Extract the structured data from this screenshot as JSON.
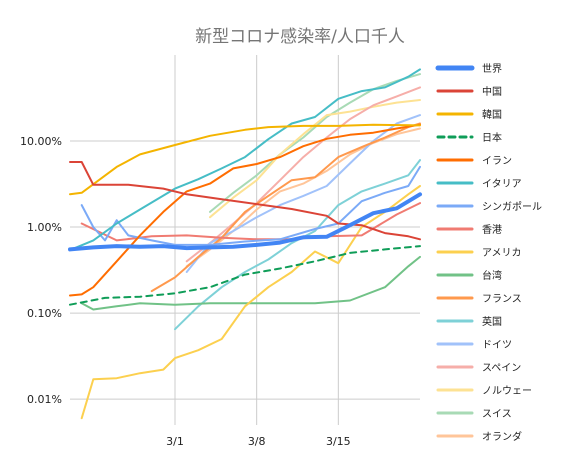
{
  "chart_data": {
    "type": "line",
    "title": "新型コロナ感染率/人口千人",
    "xlabel": "",
    "ylabel": "",
    "y_scale": "log",
    "ylim": [
      0.005,
      100
    ],
    "y_ticks": [
      {
        "value": 0.01,
        "label": "0.01%"
      },
      {
        "value": 0.1,
        "label": "0.10%"
      },
      {
        "value": 1,
        "label": "1.00%"
      },
      {
        "value": 10,
        "label": "10.00%"
      }
    ],
    "xlim": [
      "2020-02-21",
      "2020-03-22"
    ],
    "x_ticks": [
      {
        "value": "2020-03-01",
        "label": "3/1"
      },
      {
        "value": "2020-03-08",
        "label": "3/8"
      },
      {
        "value": "2020-03-15",
        "label": "3/15"
      }
    ],
    "grid": true,
    "legend_position": "right",
    "series": [
      {
        "name": "世界",
        "color": "#4285f4",
        "width": 4,
        "dash": "",
        "x": [
          "2020-02-21",
          "2020-02-23",
          "2020-02-25",
          "2020-02-27",
          "2020-02-29",
          "2020-03-02",
          "2020-03-04",
          "2020-03-06",
          "2020-03-08",
          "2020-03-10",
          "2020-03-12",
          "2020-03-14",
          "2020-03-16",
          "2020-03-18",
          "2020-03-20",
          "2020-03-22"
        ],
        "y": [
          0.55,
          0.58,
          0.6,
          0.59,
          0.6,
          0.57,
          0.58,
          0.59,
          0.62,
          0.66,
          0.76,
          0.77,
          1.05,
          1.45,
          1.65,
          2.4
        ]
      },
      {
        "name": "中国",
        "color": "#db4437",
        "width": 2,
        "dash": "",
        "x": [
          "2020-02-21",
          "2020-02-22",
          "2020-02-23",
          "2020-02-26",
          "2020-02-29",
          "2020-03-02",
          "2020-03-05",
          "2020-03-08",
          "2020-03-11",
          "2020-03-14",
          "2020-03-15",
          "2020-03-17",
          "2020-03-19",
          "2020-03-21",
          "2020-03-22"
        ],
        "y": [
          5.7,
          5.7,
          3.1,
          3.1,
          2.8,
          2.4,
          2.1,
          1.85,
          1.62,
          1.35,
          1.1,
          1.05,
          0.85,
          0.78,
          0.72
        ]
      },
      {
        "name": "韓国",
        "color": "#f4b400",
        "width": 2,
        "dash": "",
        "x": [
          "2020-02-21",
          "2020-02-22",
          "2020-02-25",
          "2020-02-27",
          "2020-03-01",
          "2020-03-04",
          "2020-03-07",
          "2020-03-09",
          "2020-03-12",
          "2020-03-15",
          "2020-03-18",
          "2020-03-22"
        ],
        "y": [
          2.4,
          2.5,
          5.0,
          7.0,
          9.0,
          11.5,
          13.5,
          14.5,
          15.0,
          15.0,
          15.5,
          15.2
        ]
      },
      {
        "name": "日本",
        "color": "#0f9d58",
        "width": 2,
        "dash": "6,5",
        "x": [
          "2020-02-21",
          "2020-02-24",
          "2020-02-27",
          "2020-03-01",
          "2020-03-04",
          "2020-03-07",
          "2020-03-10",
          "2020-03-13",
          "2020-03-16",
          "2020-03-19",
          "2020-03-22"
        ],
        "y": [
          0.125,
          0.15,
          0.155,
          0.17,
          0.2,
          0.28,
          0.33,
          0.4,
          0.5,
          0.55,
          0.6
        ]
      },
      {
        "name": "イラン",
        "color": "#ff6d01",
        "width": 2,
        "dash": "",
        "x": [
          "2020-02-21",
          "2020-02-22",
          "2020-02-23",
          "2020-02-25",
          "2020-02-27",
          "2020-02-29",
          "2020-03-02",
          "2020-03-04",
          "2020-03-06",
          "2020-03-08",
          "2020-03-10",
          "2020-03-12",
          "2020-03-14",
          "2020-03-16",
          "2020-03-18",
          "2020-03-20",
          "2020-03-22"
        ],
        "y": [
          0.16,
          0.165,
          0.2,
          0.4,
          0.8,
          1.5,
          2.6,
          3.2,
          4.8,
          5.4,
          6.5,
          8.7,
          10.6,
          11.8,
          12.5,
          14.0,
          15.5
        ]
      },
      {
        "name": "イタリア",
        "color": "#46bdc6",
        "width": 2,
        "dash": "",
        "x": [
          "2020-02-21",
          "2020-02-23",
          "2020-02-25",
          "2020-02-27",
          "2020-03-01",
          "2020-03-03",
          "2020-03-05",
          "2020-03-07",
          "2020-03-09",
          "2020-03-11",
          "2020-03-13",
          "2020-03-15",
          "2020-03-17",
          "2020-03-19",
          "2020-03-21",
          "2020-03-22"
        ],
        "y": [
          0.54,
          0.7,
          1.1,
          1.6,
          2.8,
          3.6,
          4.8,
          6.5,
          10.5,
          16.0,
          19.0,
          31.0,
          38.0,
          42.0,
          56.0,
          68.0
        ]
      },
      {
        "name": "シンガポール",
        "color": "#7baaf7",
        "width": 2,
        "dash": "",
        "x": [
          "2020-02-22",
          "2020-02-23",
          "2020-02-24",
          "2020-02-25",
          "2020-02-26",
          "2020-02-28",
          "2020-03-01",
          "2020-03-04",
          "2020-03-07",
          "2020-03-10",
          "2020-03-13",
          "2020-03-15",
          "2020-03-17",
          "2020-03-19",
          "2020-03-21",
          "2020-03-22"
        ],
        "y": [
          1.8,
          1.0,
          0.7,
          1.2,
          0.8,
          0.7,
          0.62,
          0.62,
          0.68,
          0.72,
          0.95,
          1.1,
          2.0,
          2.5,
          3.0,
          5.0
        ]
      },
      {
        "name": "香港",
        "color": "#f07b72",
        "width": 2,
        "dash": "",
        "x": [
          "2020-02-22",
          "2020-02-25",
          "2020-02-28",
          "2020-03-02",
          "2020-03-05",
          "2020-03-08",
          "2020-03-11",
          "2020-03-14",
          "2020-03-17",
          "2020-03-20",
          "2020-03-22"
        ],
        "y": [
          1.1,
          0.7,
          0.78,
          0.8,
          0.75,
          0.72,
          0.72,
          0.78,
          0.8,
          1.4,
          1.9
        ]
      },
      {
        "name": "アメリカ",
        "color": "#fcd04f",
        "width": 2,
        "dash": "",
        "x": [
          "2020-02-22",
          "2020-02-23",
          "2020-02-25",
          "2020-02-27",
          "2020-02-29",
          "2020-03-01",
          "2020-03-03",
          "2020-03-05",
          "2020-03-07",
          "2020-03-09",
          "2020-03-11",
          "2020-03-13",
          "2020-03-15",
          "2020-03-17",
          "2020-03-19",
          "2020-03-21",
          "2020-03-22"
        ],
        "y": [
          0.006,
          0.017,
          0.0175,
          0.02,
          0.022,
          0.03,
          0.037,
          0.05,
          0.12,
          0.2,
          0.3,
          0.52,
          0.38,
          1.0,
          1.5,
          2.4,
          3.0
        ]
      },
      {
        "name": "台湾",
        "color": "#71c287",
        "width": 2,
        "dash": "",
        "x": [
          "2020-02-22",
          "2020-02-23",
          "2020-02-25",
          "2020-02-27",
          "2020-03-01",
          "2020-03-04",
          "2020-03-07",
          "2020-03-10",
          "2020-03-13",
          "2020-03-16",
          "2020-03-19",
          "2020-03-21",
          "2020-03-22"
        ],
        "y": [
          0.13,
          0.11,
          0.12,
          0.13,
          0.125,
          0.13,
          0.13,
          0.13,
          0.13,
          0.14,
          0.2,
          0.35,
          0.45
        ]
      },
      {
        "name": "フランス",
        "color": "#ff994d",
        "width": 2,
        "dash": "",
        "x": [
          "2020-02-28",
          "2020-03-01",
          "2020-03-03",
          "2020-03-05",
          "2020-03-07",
          "2020-03-09",
          "2020-03-11",
          "2020-03-13",
          "2020-03-15",
          "2020-03-17",
          "2020-03-19",
          "2020-03-21",
          "2020-03-22"
        ],
        "y": [
          0.18,
          0.26,
          0.45,
          0.75,
          1.5,
          2.3,
          3.5,
          3.8,
          6.5,
          8.5,
          11.0,
          14.5,
          16.0
        ]
      },
      {
        "name": "英国",
        "color": "#7ed1d7",
        "width": 2,
        "dash": "",
        "x": [
          "2020-03-01",
          "2020-03-03",
          "2020-03-05",
          "2020-03-07",
          "2020-03-09",
          "2020-03-11",
          "2020-03-13",
          "2020-03-15",
          "2020-03-17",
          "2020-03-19",
          "2020-03-21",
          "2020-03-22"
        ],
        "y": [
          0.065,
          0.12,
          0.2,
          0.3,
          0.42,
          0.65,
          0.9,
          1.8,
          2.6,
          3.2,
          4.0,
          6.0
        ]
      },
      {
        "name": "ドイツ",
        "color": "#a1c2fa",
        "width": 2,
        "dash": "",
        "x": [
          "2020-03-02",
          "2020-03-04",
          "2020-03-06",
          "2020-03-08",
          "2020-03-10",
          "2020-03-12",
          "2020-03-14",
          "2020-03-16",
          "2020-03-18",
          "2020-03-20",
          "2020-03-22"
        ],
        "y": [
          0.3,
          0.65,
          0.9,
          1.3,
          1.8,
          2.3,
          3.0,
          5.5,
          10.0,
          16.0,
          20.0
        ]
      },
      {
        "name": "スペイン",
        "color": "#f6aea9",
        "width": 2,
        "dash": "",
        "x": [
          "2020-03-02",
          "2020-03-04",
          "2020-03-06",
          "2020-03-08",
          "2020-03-10",
          "2020-03-12",
          "2020-03-14",
          "2020-03-16",
          "2020-03-18",
          "2020-03-20",
          "2020-03-22"
        ],
        "y": [
          0.4,
          0.65,
          1.1,
          1.9,
          3.5,
          6.5,
          11.0,
          18.0,
          26.0,
          33.0,
          42.0
        ]
      },
      {
        "name": "ノルウェー",
        "color": "#fde293",
        "width": 2,
        "dash": "",
        "x": [
          "2020-03-04",
          "2020-03-06",
          "2020-03-08",
          "2020-03-10",
          "2020-03-12",
          "2020-03-14",
          "2020-03-16",
          "2020-03-18",
          "2020-03-20",
          "2020-03-22"
        ],
        "y": [
          1.3,
          2.2,
          3.5,
          7.0,
          12.0,
          20.0,
          22.0,
          25.0,
          28.0,
          30.0
        ]
      },
      {
        "name": "スイス",
        "color": "#a8dab5",
        "width": 2,
        "dash": "",
        "x": [
          "2020-03-04",
          "2020-03-06",
          "2020-03-08",
          "2020-03-10",
          "2020-03-12",
          "2020-03-14",
          "2020-03-16",
          "2020-03-18",
          "2020-03-20",
          "2020-03-22"
        ],
        "y": [
          1.5,
          2.5,
          4.0,
          7.0,
          11.0,
          19.0,
          28.0,
          40.0,
          50.0,
          60.0
        ]
      },
      {
        "name": "オランダ",
        "color": "#ffc599",
        "width": 2,
        "dash": "",
        "x": [
          "2020-03-02",
          "2020-03-04",
          "2020-03-06",
          "2020-03-08",
          "2020-03-10",
          "2020-03-12",
          "2020-03-14",
          "2020-03-16",
          "2020-03-18",
          "2020-03-20",
          "2020-03-22"
        ],
        "y": [
          0.35,
          0.55,
          0.9,
          1.6,
          2.6,
          3.2,
          4.5,
          7.0,
          9.5,
          12.0,
          14.0
        ]
      }
    ]
  }
}
